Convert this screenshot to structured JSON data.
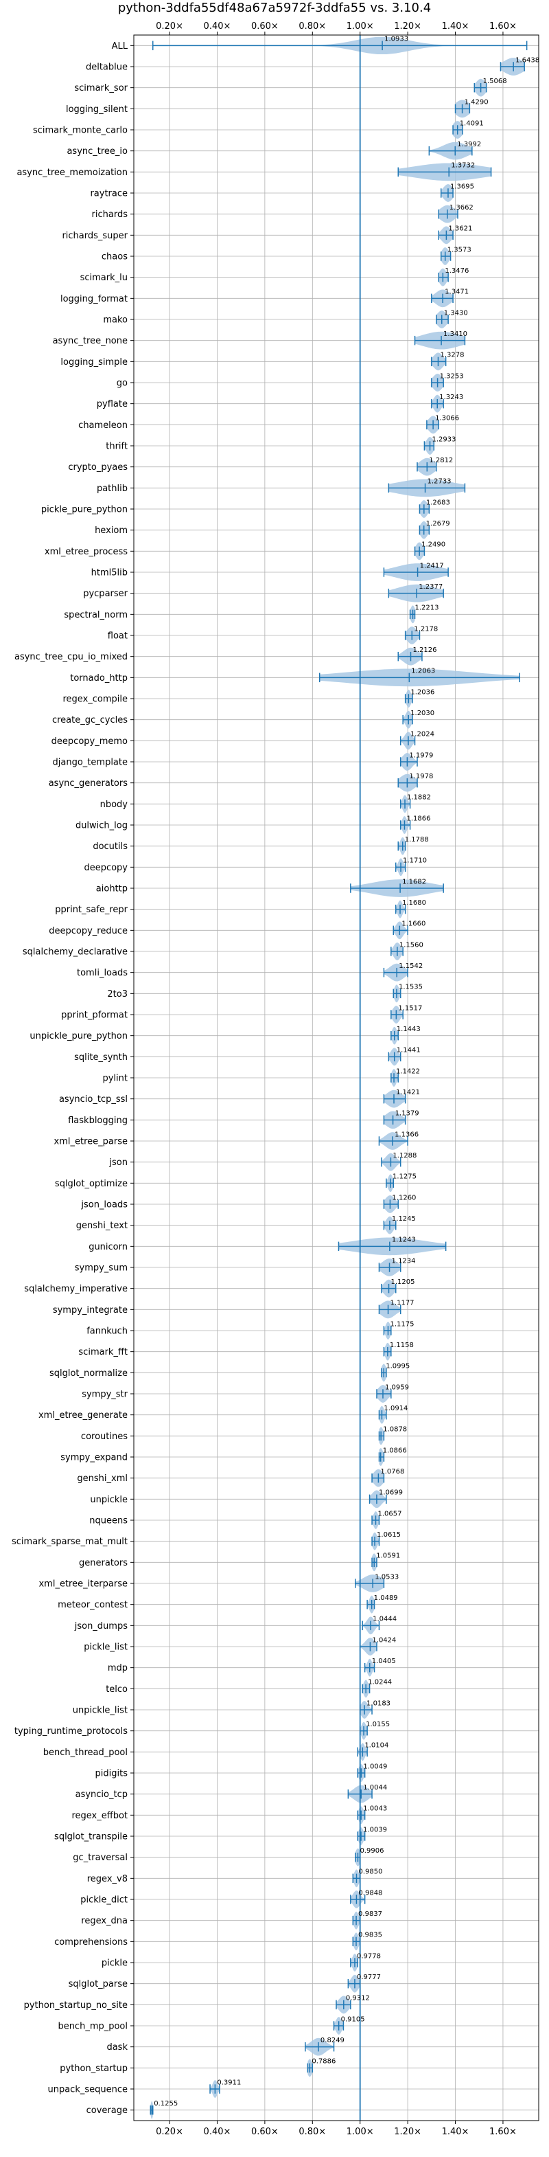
{
  "chart_data": {
    "type": "violin",
    "title": "python-3ddfa55df48a67a5972f-3ddfa55 vs. 3.10.4",
    "xlabel": "",
    "ylabel": "",
    "xlim": [
      0.05,
      1.75
    ],
    "xticks": [
      0.2,
      0.4,
      0.6,
      0.8,
      1.0,
      1.2,
      1.4,
      1.6
    ],
    "xtick_labels": [
      "0.20×",
      "0.40×",
      "0.60×",
      "0.80×",
      "1.00×",
      "1.20×",
      "1.40×",
      "1.60×"
    ],
    "reference_line": 1.0,
    "grid": true,
    "colors": {
      "accent": "#1f77b4",
      "violin": "#a8c8e4",
      "grid": "#b0b0b0"
    },
    "categories": [
      "ALL",
      "deltablue",
      "scimark_sor",
      "logging_silent",
      "scimark_monte_carlo",
      "async_tree_io",
      "async_tree_memoization",
      "raytrace",
      "richards",
      "richards_super",
      "chaos",
      "scimark_lu",
      "logging_format",
      "mako",
      "async_tree_none",
      "logging_simple",
      "go",
      "pyflate",
      "chameleon",
      "thrift",
      "crypto_pyaes",
      "pathlib",
      "pickle_pure_python",
      "hexiom",
      "xml_etree_process",
      "html5lib",
      "pycparser",
      "spectral_norm",
      "float",
      "async_tree_cpu_io_mixed",
      "tornado_http",
      "regex_compile",
      "create_gc_cycles",
      "deepcopy_memo",
      "django_template",
      "async_generators",
      "nbody",
      "dulwich_log",
      "docutils",
      "deepcopy",
      "aiohttp",
      "pprint_safe_repr",
      "deepcopy_reduce",
      "sqlalchemy_declarative",
      "tomli_loads",
      "2to3",
      "pprint_pformat",
      "unpickle_pure_python",
      "sqlite_synth",
      "pylint",
      "asyncio_tcp_ssl",
      "flaskblogging",
      "xml_etree_parse",
      "json",
      "sqlglot_optimize",
      "json_loads",
      "genshi_text",
      "gunicorn",
      "sympy_sum",
      "sqlalchemy_imperative",
      "sympy_integrate",
      "fannkuch",
      "scimark_fft",
      "sqlglot_normalize",
      "sympy_str",
      "xml_etree_generate",
      "coroutines",
      "sympy_expand",
      "genshi_xml",
      "unpickle",
      "nqueens",
      "scimark_sparse_mat_mult",
      "generators",
      "xml_etree_iterparse",
      "meteor_contest",
      "json_dumps",
      "pickle_list",
      "mdp",
      "telco",
      "unpickle_list",
      "typing_runtime_protocols",
      "bench_thread_pool",
      "pidigits",
      "asyncio_tcp",
      "regex_effbot",
      "sqlglot_transpile",
      "gc_traversal",
      "regex_v8",
      "pickle_dict",
      "regex_dna",
      "comprehensions",
      "pickle",
      "sqlglot_parse",
      "python_startup_no_site",
      "bench_mp_pool",
      "dask",
      "python_startup",
      "unpack_sequence",
      "coverage"
    ],
    "values": [
      1.0933,
      1.6438,
      1.5068,
      1.429,
      1.4091,
      1.3992,
      1.3732,
      1.3695,
      1.3662,
      1.3621,
      1.3573,
      1.3476,
      1.3471,
      1.343,
      1.341,
      1.3278,
      1.3253,
      1.3243,
      1.3066,
      1.2933,
      1.2812,
      1.2733,
      1.2683,
      1.2679,
      1.249,
      1.2417,
      1.2377,
      1.2213,
      1.2178,
      1.2126,
      1.2063,
      1.2036,
      1.203,
      1.2024,
      1.1979,
      1.1978,
      1.1882,
      1.1866,
      1.1788,
      1.171,
      1.1682,
      1.168,
      1.166,
      1.156,
      1.1542,
      1.1535,
      1.1517,
      1.1443,
      1.1441,
      1.1422,
      1.1421,
      1.1379,
      1.1366,
      1.1288,
      1.1275,
      1.126,
      1.1245,
      1.1243,
      1.1234,
      1.1205,
      1.1177,
      1.1175,
      1.1158,
      1.0995,
      1.0959,
      1.0914,
      1.0878,
      1.0866,
      1.0768,
      1.0699,
      1.0657,
      1.0615,
      1.0591,
      1.0533,
      1.0489,
      1.0444,
      1.0424,
      1.0405,
      1.0244,
      1.0183,
      1.0155,
      1.0104,
      1.0049,
      1.0044,
      1.0043,
      1.0039,
      0.9906,
      0.985,
      0.9848,
      0.9837,
      0.9835,
      0.9778,
      0.9777,
      0.9312,
      0.9105,
      0.8249,
      0.7886,
      0.3911,
      0.1255
    ],
    "value_labels": [
      "1.0933",
      "1.6438",
      "1.5068",
      "1.4290",
      "1.4091",
      "1.3992",
      "1.3732",
      "1.3695",
      "1.3662",
      "1.3621",
      "1.3573",
      "1.3476",
      "1.3471",
      "1.3430",
      "1.3410",
      "1.3278",
      "1.3253",
      "1.3243",
      "1.3066",
      "1.2933",
      "1.2812",
      "1.2733",
      "1.2683",
      "1.2679",
      "1.2490",
      "1.2417",
      "1.2377",
      "1.2213",
      "1.2178",
      "1.2126",
      "1.2063",
      "1.2036",
      "1.2030",
      "1.2024",
      "1.1979",
      "1.1978",
      "1.1882",
      "1.1866",
      "1.1788",
      "1.1710",
      "1.1682",
      "1.1680",
      "1.1660",
      "1.1560",
      "1.1542",
      "1.1535",
      "1.1517",
      "1.1443",
      "1.1441",
      "1.1422",
      "1.1421",
      "1.1379",
      "1.1366",
      "1.1288",
      "1.1275",
      "1.1260",
      "1.1245",
      "1.1243",
      "1.1234",
      "1.1205",
      "1.1177",
      "1.1175",
      "1.1158",
      "1.0995",
      "1.0959",
      "1.0914",
      "1.0878",
      "1.0866",
      "1.0768",
      "1.0699",
      "1.0657",
      "1.0615",
      "1.0591",
      "1.0533",
      "1.0489",
      "1.0444",
      "1.0424",
      "1.0405",
      "1.0244",
      "1.0183",
      "1.0155",
      "1.0104",
      "1.0049",
      "1.0044",
      "1.0043",
      "1.0039",
      "0.9906",
      "0.9850",
      "0.9848",
      "0.9837",
      "0.9835",
      "0.9778",
      "0.9777",
      "0.9312",
      "0.9105",
      "0.8249",
      "0.7886",
      "0.3911",
      "0.1255"
    ],
    "mins": [
      0.13,
      1.59,
      1.48,
      1.4,
      1.39,
      1.29,
      1.16,
      1.34,
      1.33,
      1.33,
      1.34,
      1.33,
      1.3,
      1.32,
      1.23,
      1.3,
      1.3,
      1.3,
      1.28,
      1.27,
      1.24,
      1.12,
      1.25,
      1.25,
      1.23,
      1.1,
      1.12,
      1.21,
      1.19,
      1.16,
      0.83,
      1.19,
      1.18,
      1.17,
      1.17,
      1.16,
      1.17,
      1.17,
      1.16,
      1.15,
      0.96,
      1.15,
      1.14,
      1.13,
      1.1,
      1.14,
      1.13,
      1.13,
      1.12,
      1.13,
      1.1,
      1.1,
      1.08,
      1.09,
      1.11,
      1.1,
      1.1,
      0.91,
      1.08,
      1.09,
      1.08,
      1.1,
      1.1,
      1.09,
      1.07,
      1.08,
      1.08,
      1.08,
      1.05,
      1.04,
      1.05,
      1.05,
      1.05,
      0.98,
      1.03,
      1.01,
      1.0,
      1.02,
      1.01,
      1.0,
      1.0,
      0.99,
      0.99,
      0.95,
      0.99,
      0.99,
      0.98,
      0.97,
      0.96,
      0.97,
      0.97,
      0.96,
      0.95,
      0.9,
      0.89,
      0.77,
      0.78,
      0.37,
      0.12
    ],
    "maxs": [
      1.7,
      1.69,
      1.53,
      1.46,
      1.43,
      1.47,
      1.55,
      1.39,
      1.41,
      1.39,
      1.38,
      1.37,
      1.39,
      1.37,
      1.44,
      1.36,
      1.35,
      1.35,
      1.33,
      1.31,
      1.32,
      1.44,
      1.29,
      1.29,
      1.27,
      1.37,
      1.35,
      1.23,
      1.25,
      1.26,
      1.67,
      1.22,
      1.22,
      1.23,
      1.24,
      1.24,
      1.21,
      1.21,
      1.19,
      1.19,
      1.35,
      1.19,
      1.2,
      1.18,
      1.2,
      1.17,
      1.18,
      1.16,
      1.17,
      1.16,
      1.19,
      1.19,
      1.2,
      1.17,
      1.14,
      1.16,
      1.15,
      1.36,
      1.17,
      1.15,
      1.17,
      1.13,
      1.13,
      1.11,
      1.13,
      1.11,
      1.1,
      1.1,
      1.1,
      1.11,
      1.08,
      1.08,
      1.07,
      1.1,
      1.06,
      1.08,
      1.07,
      1.06,
      1.04,
      1.05,
      1.03,
      1.03,
      1.02,
      1.05,
      1.02,
      1.02,
      1.0,
      1.0,
      1.02,
      1.0,
      1.0,
      0.99,
      1.0,
      0.96,
      0.93,
      0.89,
      0.8,
      0.41,
      0.13
    ],
    "spreads": [
      0.11,
      0.04,
      0.02,
      0.03,
      0.02,
      0.05,
      0.15,
      0.02,
      0.03,
      0.02,
      0.015,
      0.015,
      0.03,
      0.02,
      0.08,
      0.02,
      0.02,
      0.015,
      0.02,
      0.015,
      0.03,
      0.12,
      0.015,
      0.015,
      0.015,
      0.09,
      0.08,
      0.01,
      0.02,
      0.03,
      0.26,
      0.01,
      0.012,
      0.015,
      0.02,
      0.03,
      0.01,
      0.01,
      0.01,
      0.01,
      0.12,
      0.01,
      0.015,
      0.015,
      0.03,
      0.01,
      0.015,
      0.01,
      0.015,
      0.01,
      0.03,
      0.03,
      0.03,
      0.02,
      0.01,
      0.02,
      0.015,
      0.15,
      0.03,
      0.02,
      0.03,
      0.01,
      0.01,
      0.01,
      0.02,
      0.01,
      0.01,
      0.01,
      0.02,
      0.02,
      0.01,
      0.01,
      0.01,
      0.04,
      0.01,
      0.015,
      0.02,
      0.01,
      0.01,
      0.015,
      0.01,
      0.01,
      0.01,
      0.03,
      0.01,
      0.01,
      0.01,
      0.01,
      0.015,
      0.01,
      0.01,
      0.01,
      0.015,
      0.02,
      0.012,
      0.03,
      0.01,
      0.01,
      0.005
    ]
  }
}
